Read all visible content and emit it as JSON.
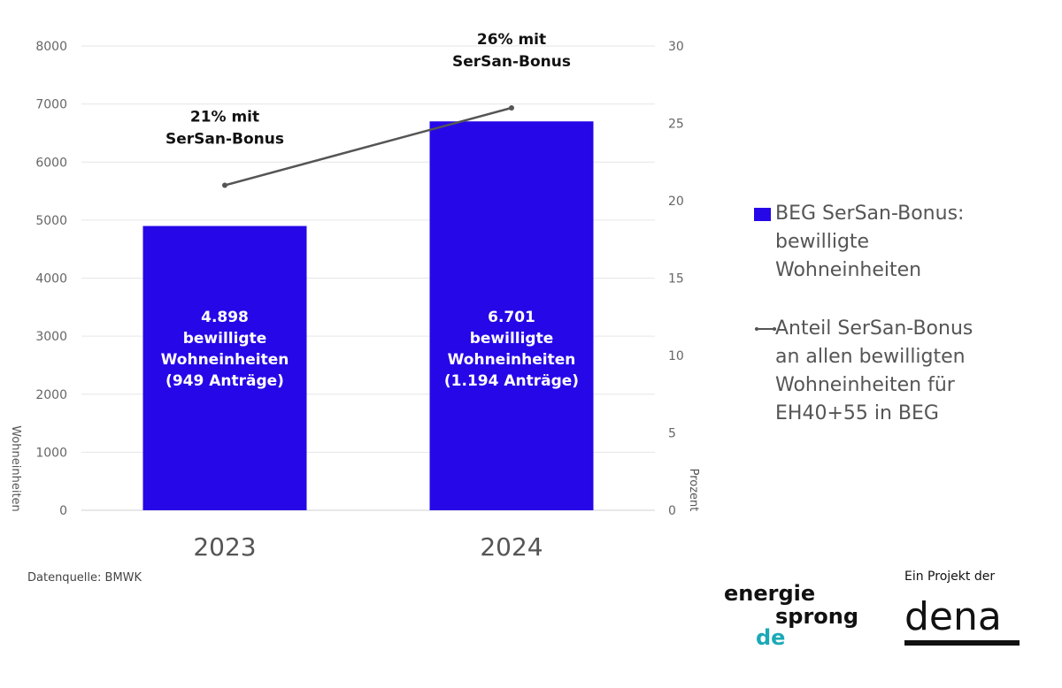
{
  "chart_data": {
    "type": "bar",
    "categories": [
      "2023",
      "2024"
    ],
    "series": [
      {
        "name": "BEG SerSan-Bonus: bewilligte Wohneinheiten",
        "type": "bar",
        "axis": "left",
        "values": [
          4898,
          6701
        ],
        "color": "#2607e8",
        "bar_labels": [
          [
            "4.898",
            "bewilligte",
            "Wohneinheiten",
            "(949 Anträge)"
          ],
          [
            "6.701",
            "bewilligte",
            "Wohneinheiten",
            "(1.194 Anträge)"
          ]
        ]
      },
      {
        "name": "Anteil SerSan-Bonus an allen bewilligten Wohneinheiten für EH40+55 in BEG",
        "type": "line",
        "axis": "right",
        "values": [
          21,
          26
        ],
        "color": "#555555",
        "point_labels": [
          [
            "21% mit",
            "SerSan-Bonus"
          ],
          [
            "26% mit",
            "SerSan-Bonus"
          ]
        ]
      }
    ],
    "ylabel": "Wohneinheiten",
    "y2label": "Prozent",
    "ylim": [
      0,
      8000
    ],
    "y2lim": [
      0,
      30
    ],
    "yticks": [
      0,
      1000,
      2000,
      3000,
      4000,
      5000,
      6000,
      7000,
      8000
    ],
    "y2ticks": [
      0,
      5,
      10,
      15,
      20,
      25,
      30
    ],
    "grid": true,
    "legend_position": "right"
  },
  "legend": {
    "bar_label_lines": [
      "BEG SerSan-Bonus:",
      "bewilligte",
      "Wohneinheiten"
    ],
    "line_label_lines": [
      "Anteil SerSan-Bonus",
      "an allen bewilligten",
      "Wohneinheiten für",
      "EH40+55 in BEG"
    ]
  },
  "footer": {
    "source": "Datenquelle: BMWK",
    "logo_line1": "energie",
    "logo_line2": "sprong",
    "logo_line3": "de",
    "project_label": "Ein Projekt der",
    "dena": "dena"
  }
}
